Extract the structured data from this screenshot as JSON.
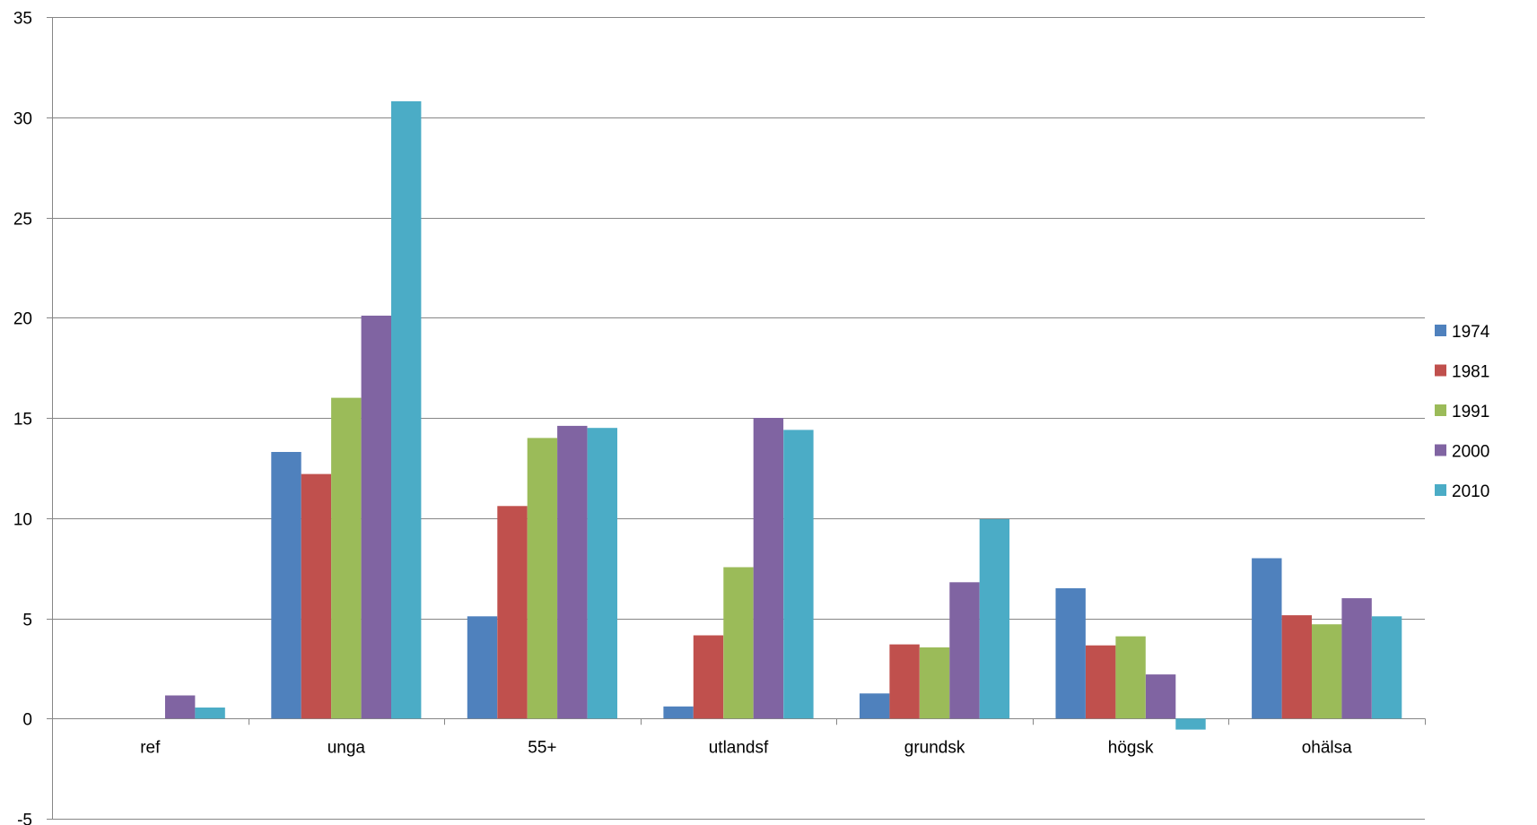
{
  "chart_data": {
    "type": "bar",
    "title": "",
    "xlabel": "",
    "ylabel": "",
    "ylim": [
      -5,
      35
    ],
    "y_ticks": [
      -5,
      0,
      5,
      10,
      15,
      20,
      25,
      30,
      35
    ],
    "grid": true,
    "legend_position": "right",
    "categories": [
      "ref",
      "unga",
      "55+",
      "utlandsf",
      "grundsk",
      "högsk",
      "ohälsa"
    ],
    "series": [
      {
        "name": "1974",
        "color": "#4F81BD",
        "values": [
          0,
          13.3,
          5.1,
          0.6,
          1.25,
          6.5,
          8.0
        ]
      },
      {
        "name": "1981",
        "color": "#C0504D",
        "values": [
          0,
          12.2,
          10.6,
          4.15,
          3.7,
          3.65,
          5.15
        ]
      },
      {
        "name": "1991",
        "color": "#9BBB59",
        "values": [
          0,
          16.0,
          14.0,
          7.55,
          3.55,
          4.1,
          4.7
        ]
      },
      {
        "name": "2000",
        "color": "#8064A2",
        "values": [
          1.15,
          20.1,
          14.6,
          15.0,
          6.8,
          2.2,
          6.0
        ]
      },
      {
        "name": "2010",
        "color": "#4BACC6",
        "values": [
          0.55,
          30.8,
          14.5,
          14.4,
          9.95,
          -0.55,
          5.1
        ]
      }
    ]
  }
}
